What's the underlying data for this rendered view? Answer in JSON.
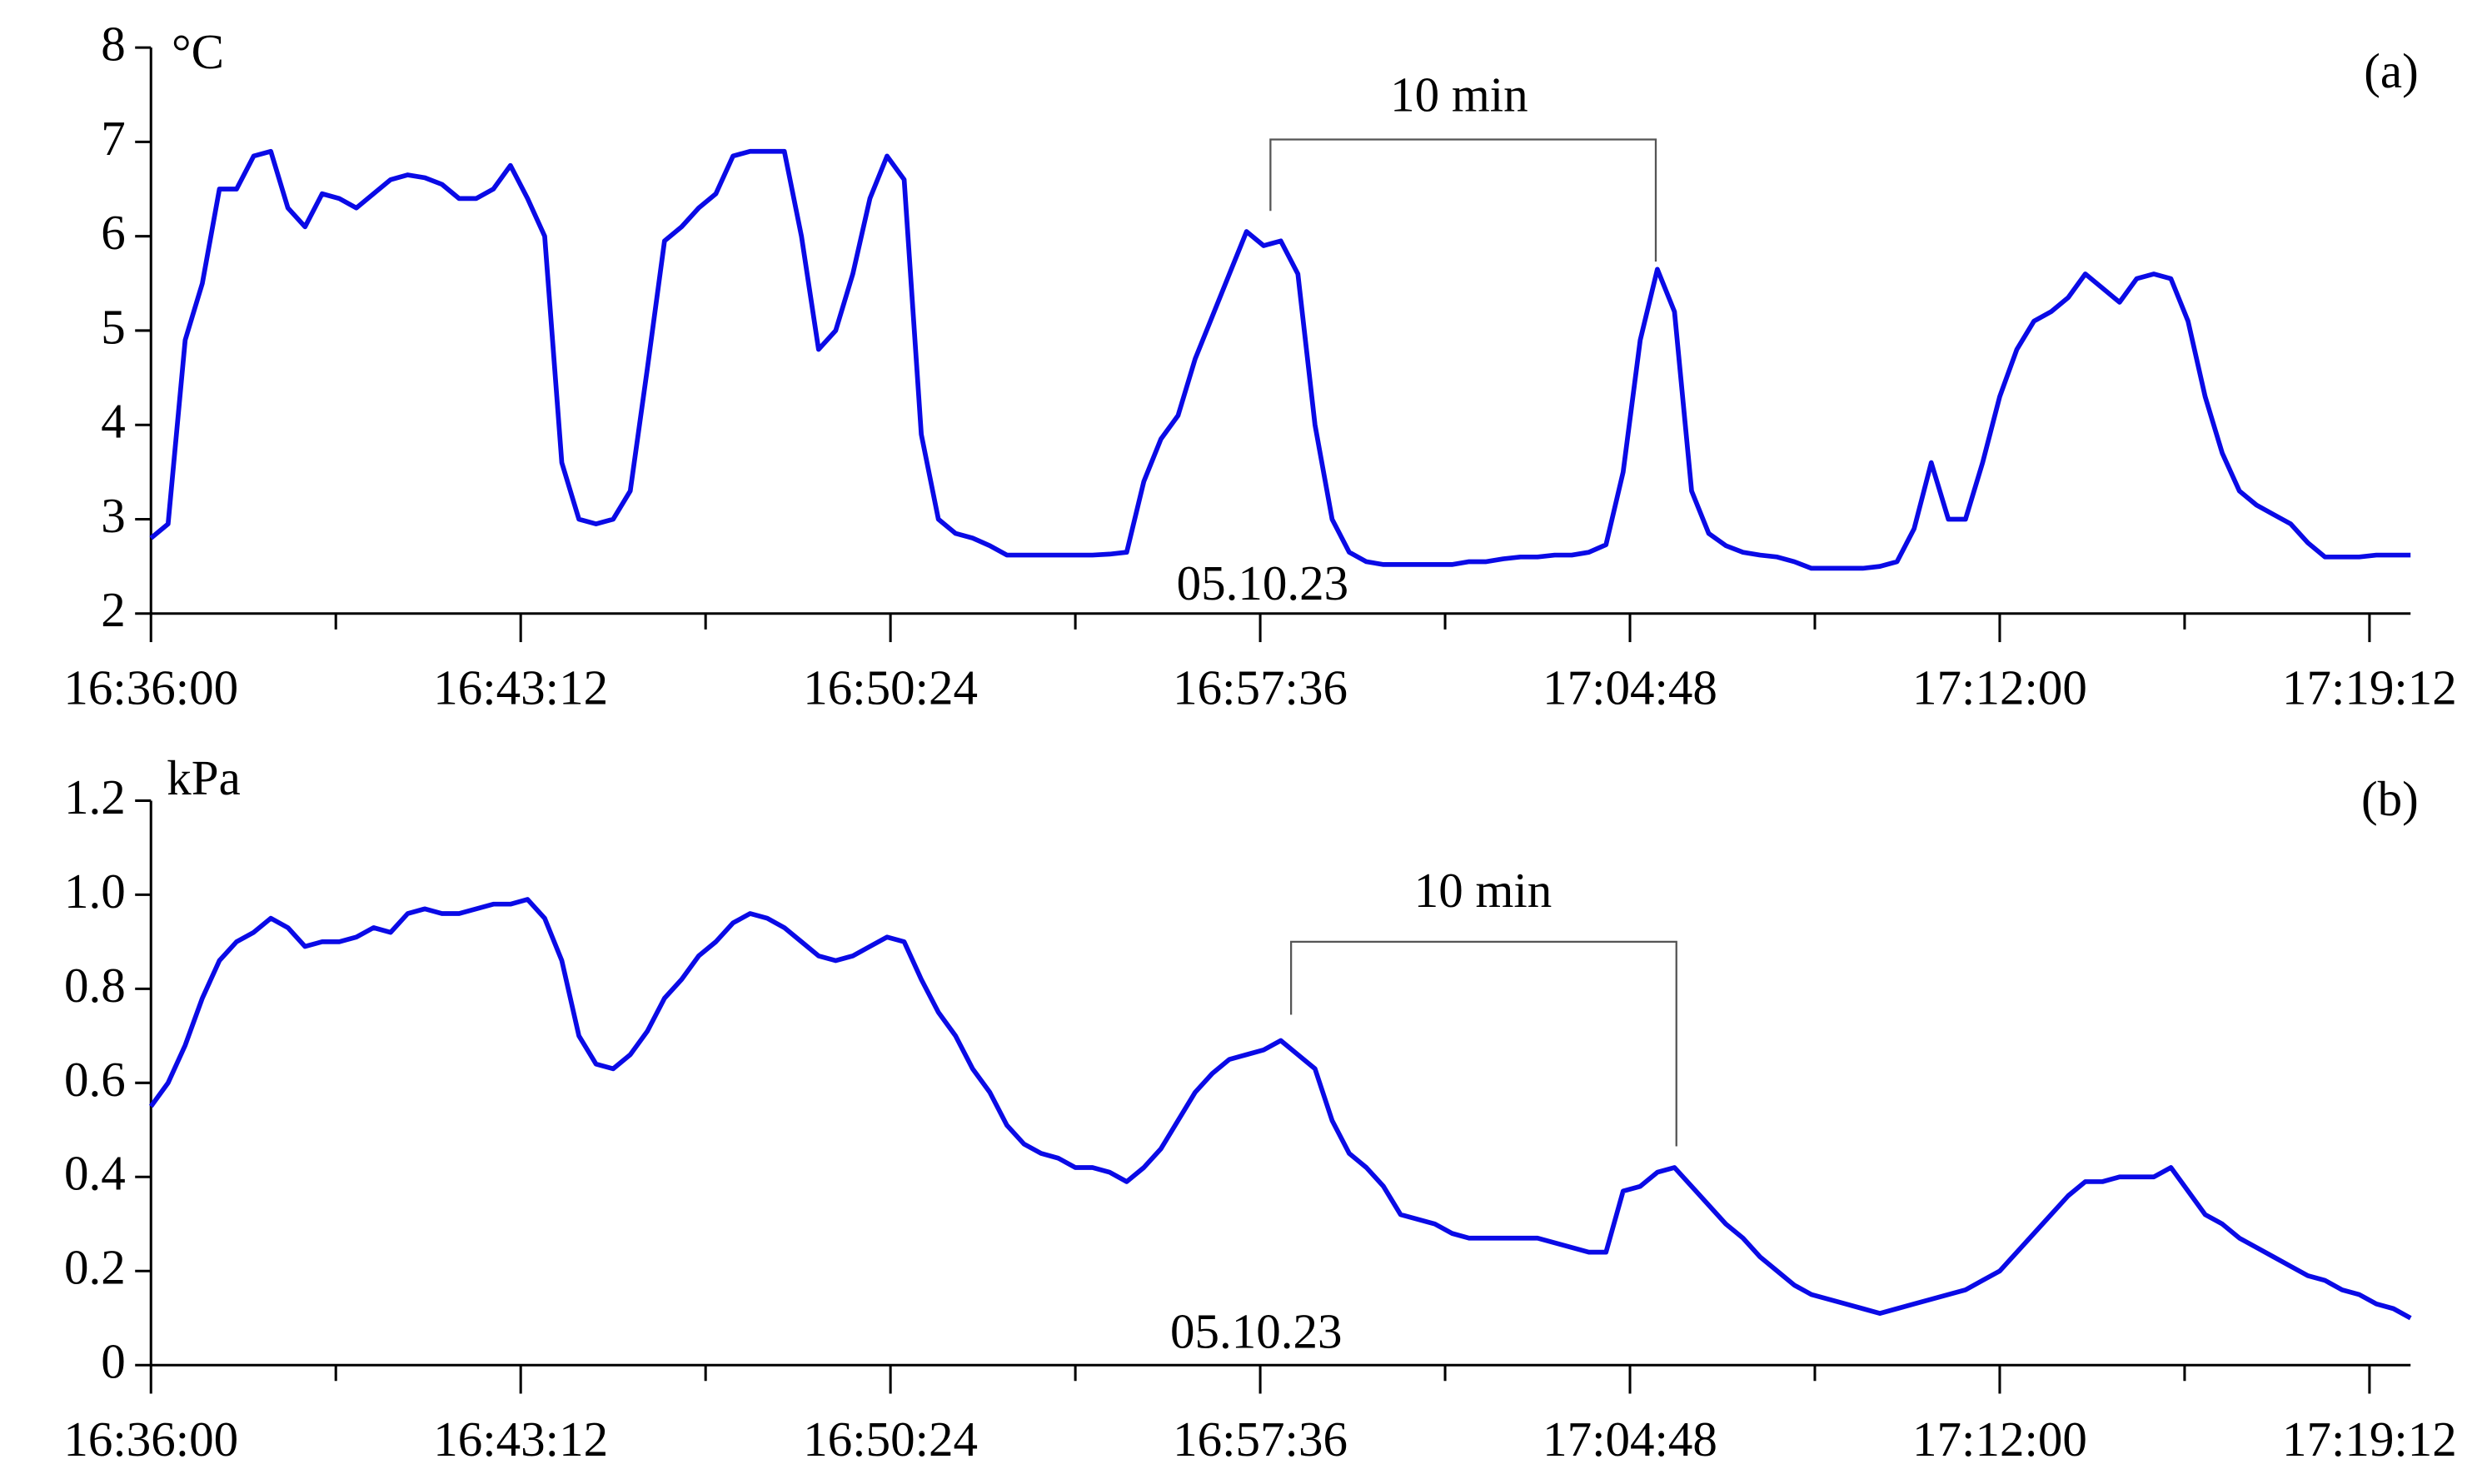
{
  "chart_data": [
    {
      "type": "line",
      "panel_label": "(a)",
      "y_label": "°C",
      "annotation": "10 min",
      "date_label": "05.10.23",
      "color": "#0a0ae6",
      "xlim": [
        "16:36:00",
        "17:20:00"
      ],
      "xticks": [
        "16:36:00",
        "16:43:12",
        "16:50:24",
        "16:57:36",
        "17:04:48",
        "17:12:00",
        "17:19:12"
      ],
      "ylim": [
        2,
        8
      ],
      "yticks": [
        2,
        3,
        4,
        5,
        6,
        7,
        8
      ],
      "x": [
        "16:36:00",
        "16:36:20",
        "16:36:40",
        "16:37:00",
        "16:37:20",
        "16:37:40",
        "16:38:00",
        "16:38:20",
        "16:38:40",
        "16:39:00",
        "16:39:20",
        "16:39:40",
        "16:40:00",
        "16:40:20",
        "16:40:40",
        "16:41:00",
        "16:41:20",
        "16:41:40",
        "16:42:00",
        "16:42:20",
        "16:42:40",
        "16:43:00",
        "16:43:20",
        "16:43:40",
        "16:44:00",
        "16:44:20",
        "16:44:40",
        "16:45:00",
        "16:45:20",
        "16:45:40",
        "16:46:00",
        "16:46:20",
        "16:46:40",
        "16:47:00",
        "16:47:20",
        "16:47:40",
        "16:48:00",
        "16:48:20",
        "16:48:40",
        "16:49:00",
        "16:49:20",
        "16:49:40",
        "16:50:00",
        "16:50:20",
        "16:50:40",
        "16:51:00",
        "16:51:20",
        "16:51:40",
        "16:52:00",
        "16:52:20",
        "16:52:40",
        "16:53:00",
        "16:53:20",
        "16:53:40",
        "16:54:00",
        "16:54:20",
        "16:54:40",
        "16:55:00",
        "16:55:20",
        "16:55:40",
        "16:56:00",
        "16:56:20",
        "16:56:40",
        "16:57:00",
        "16:57:20",
        "16:57:40",
        "16:58:00",
        "16:58:20",
        "16:58:40",
        "16:59:00",
        "16:59:20",
        "16:59:40",
        "17:00:00",
        "17:00:20",
        "17:00:40",
        "17:01:00",
        "17:01:20",
        "17:01:40",
        "17:02:00",
        "17:02:20",
        "17:02:40",
        "17:03:00",
        "17:03:20",
        "17:03:40",
        "17:04:00",
        "17:04:20",
        "17:04:40",
        "17:05:00",
        "17:05:20",
        "17:05:40",
        "17:06:00",
        "17:06:20",
        "17:06:40",
        "17:07:00",
        "17:07:20",
        "17:07:40",
        "17:08:00",
        "17:08:20",
        "17:08:40",
        "17:09:00",
        "17:09:20",
        "17:09:40",
        "17:10:00",
        "17:10:20",
        "17:10:40",
        "17:11:00",
        "17:11:20",
        "17:11:40",
        "17:12:00",
        "17:12:20",
        "17:12:40",
        "17:13:00",
        "17:13:20",
        "17:13:40",
        "17:14:00",
        "17:14:20",
        "17:14:40",
        "17:15:00",
        "17:15:20",
        "17:15:40",
        "17:16:00",
        "17:16:20",
        "17:16:40",
        "17:17:00",
        "17:17:20",
        "17:17:40",
        "17:18:00",
        "17:18:20",
        "17:18:40",
        "17:19:00",
        "17:19:20",
        "17:19:40",
        "17:20:00"
      ],
      "values": [
        2.8,
        2.95,
        4.9,
        5.5,
        6.5,
        6.5,
        6.85,
        6.9,
        6.3,
        6.1,
        6.45,
        6.4,
        6.3,
        6.45,
        6.6,
        6.65,
        6.62,
        6.55,
        6.4,
        6.4,
        6.5,
        6.75,
        6.4,
        6.0,
        3.6,
        3.0,
        2.95,
        3.0,
        3.3,
        4.6,
        5.95,
        6.1,
        6.3,
        6.45,
        6.85,
        6.9,
        6.9,
        6.9,
        6.0,
        4.8,
        5.0,
        5.6,
        6.4,
        6.85,
        6.6,
        3.9,
        3.0,
        2.85,
        2.8,
        2.72,
        2.62,
        2.62,
        2.62,
        2.62,
        2.62,
        2.62,
        2.63,
        2.65,
        3.4,
        3.85,
        4.1,
        4.7,
        5.15,
        5.6,
        6.05,
        5.9,
        5.95,
        5.6,
        4.0,
        3.0,
        2.65,
        2.55,
        2.52,
        2.52,
        2.52,
        2.52,
        2.52,
        2.55,
        2.55,
        2.58,
        2.6,
        2.6,
        2.62,
        2.62,
        2.65,
        2.73,
        3.5,
        4.9,
        5.65,
        5.2,
        3.3,
        2.85,
        2.72,
        2.65,
        2.62,
        2.6,
        2.55,
        2.48,
        2.48,
        2.48,
        2.48,
        2.5,
        2.55,
        2.9,
        3.6,
        3.0,
        3.0,
        3.6,
        4.3,
        4.8,
        5.1,
        5.2,
        5.35,
        5.6,
        5.45,
        5.3,
        5.55,
        5.6,
        5.55,
        5.1,
        4.3,
        3.7,
        3.3,
        3.15,
        3.05,
        2.95,
        2.75,
        2.6,
        2.6,
        2.6,
        2.62,
        2.62,
        2.62
      ]
    },
    {
      "type": "line",
      "panel_label": "(b)",
      "y_label": "kPa",
      "annotation": "10 min",
      "date_label": "05.10.23",
      "color": "#0a0ae6",
      "xlim": [
        "16:36:00",
        "17:20:00"
      ],
      "xticks": [
        "16:36:00",
        "16:43:12",
        "16:50:24",
        "16:57:36",
        "17:04:48",
        "17:12:00",
        "17:19:12"
      ],
      "ylim": [
        0,
        1.2
      ],
      "yticks": [
        0,
        0.2,
        0.4,
        0.6,
        0.8,
        {
          "value": 1,
          "label": "1.0"
        },
        1.2
      ],
      "x": [
        "16:36:00",
        "16:36:20",
        "16:36:40",
        "16:37:00",
        "16:37:20",
        "16:37:40",
        "16:38:00",
        "16:38:20",
        "16:38:40",
        "16:39:00",
        "16:39:20",
        "16:39:40",
        "16:40:00",
        "16:40:20",
        "16:40:40",
        "16:41:00",
        "16:41:20",
        "16:41:40",
        "16:42:00",
        "16:42:20",
        "16:42:40",
        "16:43:00",
        "16:43:20",
        "16:43:40",
        "16:44:00",
        "16:44:20",
        "16:44:40",
        "16:45:00",
        "16:45:20",
        "16:45:40",
        "16:46:00",
        "16:46:20",
        "16:46:40",
        "16:47:00",
        "16:47:20",
        "16:47:40",
        "16:48:00",
        "16:48:20",
        "16:48:40",
        "16:49:00",
        "16:49:20",
        "16:49:40",
        "16:50:00",
        "16:50:20",
        "16:50:40",
        "16:51:00",
        "16:51:20",
        "16:51:40",
        "16:52:00",
        "16:52:20",
        "16:52:40",
        "16:53:00",
        "16:53:20",
        "16:53:40",
        "16:54:00",
        "16:54:20",
        "16:54:40",
        "16:55:00",
        "16:55:20",
        "16:55:40",
        "16:56:00",
        "16:56:20",
        "16:56:40",
        "16:57:00",
        "16:57:20",
        "16:57:40",
        "16:58:00",
        "16:58:20",
        "16:58:40",
        "16:59:00",
        "16:59:20",
        "16:59:40",
        "17:00:00",
        "17:00:20",
        "17:00:40",
        "17:01:00",
        "17:01:20",
        "17:01:40",
        "17:02:00",
        "17:02:20",
        "17:02:40",
        "17:03:00",
        "17:03:20",
        "17:03:40",
        "17:04:00",
        "17:04:20",
        "17:04:40",
        "17:05:00",
        "17:05:20",
        "17:05:40",
        "17:06:00",
        "17:06:20",
        "17:06:40",
        "17:07:00",
        "17:07:20",
        "17:07:40",
        "17:08:00",
        "17:08:20",
        "17:08:40",
        "17:09:00",
        "17:09:20",
        "17:09:40",
        "17:10:00",
        "17:10:20",
        "17:10:40",
        "17:11:00",
        "17:11:20",
        "17:11:40",
        "17:12:00",
        "17:12:20",
        "17:12:40",
        "17:13:00",
        "17:13:20",
        "17:13:40",
        "17:14:00",
        "17:14:20",
        "17:14:40",
        "17:15:00",
        "17:15:20",
        "17:15:40",
        "17:16:00",
        "17:16:20",
        "17:16:40",
        "17:17:00",
        "17:17:20",
        "17:17:40",
        "17:18:00",
        "17:18:20",
        "17:18:40",
        "17:19:00",
        "17:19:20",
        "17:19:40",
        "17:20:00"
      ],
      "values": [
        0.55,
        0.6,
        0.68,
        0.78,
        0.86,
        0.9,
        0.92,
        0.95,
        0.93,
        0.89,
        0.9,
        0.9,
        0.91,
        0.93,
        0.92,
        0.96,
        0.97,
        0.96,
        0.96,
        0.97,
        0.98,
        0.98,
        0.99,
        0.95,
        0.86,
        0.7,
        0.64,
        0.63,
        0.66,
        0.71,
        0.78,
        0.82,
        0.87,
        0.9,
        0.94,
        0.96,
        0.95,
        0.93,
        0.9,
        0.87,
        0.86,
        0.87,
        0.89,
        0.91,
        0.9,
        0.82,
        0.75,
        0.7,
        0.63,
        0.58,
        0.51,
        0.47,
        0.45,
        0.44,
        0.42,
        0.42,
        0.41,
        0.39,
        0.42,
        0.46,
        0.52,
        0.58,
        0.62,
        0.65,
        0.66,
        0.67,
        0.69,
        0.66,
        0.63,
        0.52,
        0.45,
        0.42,
        0.38,
        0.32,
        0.31,
        0.3,
        0.28,
        0.27,
        0.27,
        0.27,
        0.27,
        0.27,
        0.26,
        0.25,
        0.24,
        0.24,
        0.37,
        0.38,
        0.41,
        0.42,
        0.38,
        0.34,
        0.3,
        0.27,
        0.23,
        0.2,
        0.17,
        0.15,
        0.14,
        0.13,
        0.12,
        0.11,
        0.12,
        0.13,
        0.14,
        0.15,
        0.16,
        0.18,
        0.2,
        0.24,
        0.28,
        0.32,
        0.36,
        0.39,
        0.39,
        0.4,
        0.4,
        0.4,
        0.42,
        0.37,
        0.32,
        0.3,
        0.27,
        0.25,
        0.23,
        0.21,
        0.19,
        0.18,
        0.16,
        0.15,
        0.13,
        0.12,
        0.1
      ]
    }
  ]
}
